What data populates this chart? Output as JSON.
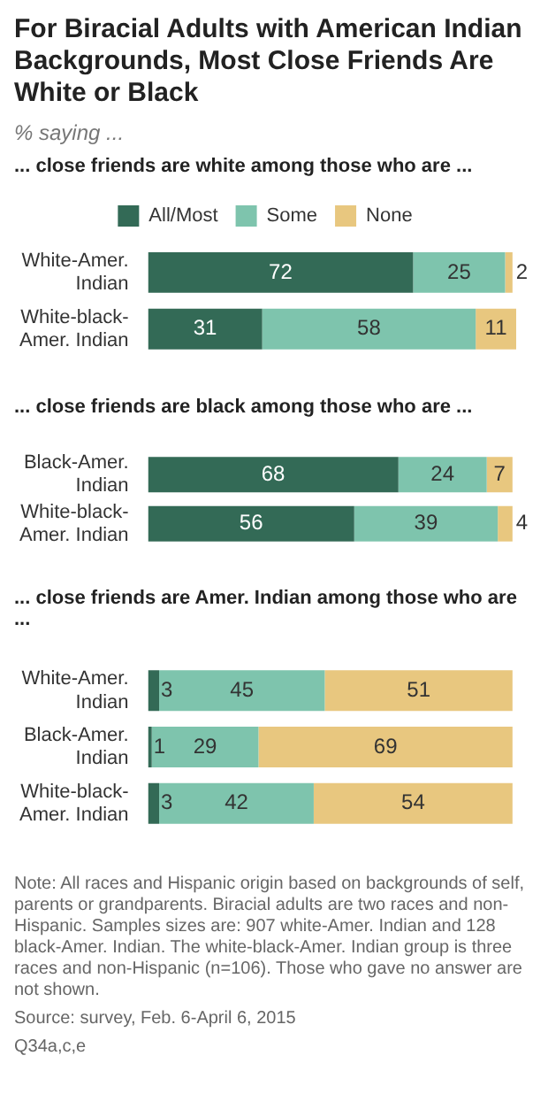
{
  "chart_data": [
    {
      "type": "other",
      "title": "For Biracial Adults with American Indian Backgrounds,  Most Close Friends Are White or Black",
      "subtitle": "% saying ..."
    },
    {
      "type": "bar",
      "orientation": "horizontal",
      "stacked": true,
      "data_labels": true,
      "legend": "top",
      "title": "... close friends are white among those who are ...",
      "categories": [
        "White-Amer. Indian",
        "White-black-Amer. Indian"
      ],
      "series": [
        {
          "name": "All/Most",
          "color": "#336a56",
          "values": [
            72,
            31
          ]
        },
        {
          "name": "Some",
          "color": "#7ec4ad",
          "values": [
            25,
            58
          ]
        },
        {
          "name": "None",
          "color": "#e8c77f",
          "values": [
            2,
            11
          ]
        }
      ]
    },
    {
      "type": "bar",
      "orientation": "horizontal",
      "stacked": true,
      "data_labels": true,
      "title": "... close friends are black among those who are ...",
      "categories": [
        "Black-Amer. Indian",
        "White-black-Amer. Indian"
      ],
      "series": [
        {
          "color": "#336a56",
          "values": [
            68,
            56
          ]
        },
        {
          "color": "#7ec4ad",
          "values": [
            24,
            39
          ]
        },
        {
          "color": "#e8c77f",
          "values": [
            7,
            4
          ]
        }
      ]
    },
    {
      "type": "bar",
      "orientation": "horizontal",
      "stacked": true,
      "data_labels": true,
      "title": "... close friends are Amer. Indian among those who are ...",
      "categories": [
        "White-Amer. Indian",
        "Black-Amer. Indian",
        "White-black-Amer. Indian"
      ],
      "series": [
        {
          "color": "#336a56",
          "values": [
            3,
            1,
            3
          ]
        },
        {
          "color": "#7ec4ad",
          "values": [
            45,
            29,
            42
          ]
        },
        {
          "color": "#e8c77f",
          "values": [
            51,
            69,
            54
          ]
        }
      ],
      "annotations": [
        "Note: All races and Hispanic origin based on backgrounds of self, parents or grandparents. Biracial adults are two races and non-Hispanic. Samples sizes are: 907 white-Amer. Indian and 128 black-Amer. Indian. The white-black-Amer. Indian group is three races and non-Hispanic (n=106). Those who gave no answer are not shown.",
        "Source: survey, Feb. 6-April 6, 2015",
        "Q34a,c,e"
      ]
    }
  ]
}
